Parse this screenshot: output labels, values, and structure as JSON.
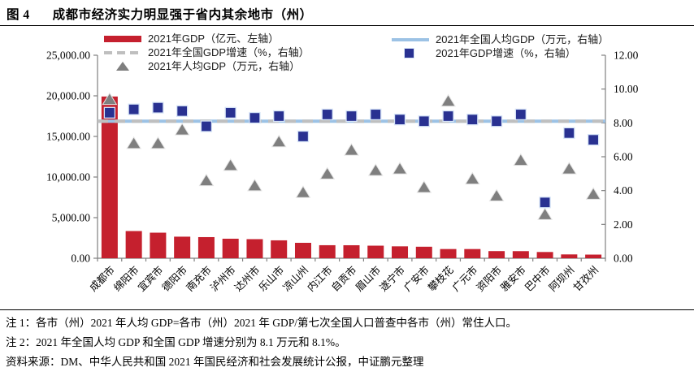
{
  "figure": {
    "label": "图 4",
    "title": "成都市经济实力明显强于省内其余地市（州）"
  },
  "legend": [
    {
      "label": "2021年GDP（亿元、左轴）",
      "marker": "red-bar"
    },
    {
      "label": "2021年全国GDP增速（%，右轴）",
      "marker": "gray-dashed-line"
    },
    {
      "label": "2021年人均GDP（万元，右轴）",
      "marker": "gray-triangle"
    },
    {
      "label": "2021年全国人均GDP（万元，右轴）",
      "marker": "lightblue-line"
    },
    {
      "label": "2021年GDP增速（%，右轴）",
      "marker": "navy-square"
    }
  ],
  "chart_data": {
    "type": "bar",
    "subtype": "combo: bars (left axis) + scatter squares/triangles (right axis) + two horizontal reference lines",
    "title": "成都市经济实力明显强于省内其余地市（州）",
    "categories": [
      "成都市",
      "绵阳市",
      "宜宾市",
      "德阳市",
      "南充市",
      "泸州市",
      "达州市",
      "乐山市",
      "凉山州",
      "内江市",
      "自贡市",
      "眉山市",
      "遂宁市",
      "广安市",
      "攀枝花",
      "广元市",
      "资阳市",
      "雅安市",
      "巴中市",
      "阿坝州",
      "甘孜州"
    ],
    "series": [
      {
        "name": "2021年GDP（亿元、左轴）",
        "type": "bar",
        "axis": "left",
        "color": "#C5202E",
        "values": [
          19917,
          3350,
          3148,
          2657,
          2602,
          2406,
          2352,
          2205,
          1901,
          1606,
          1601,
          1548,
          1466,
          1419,
          1134,
          1133,
          879,
          874,
          768,
          472,
          448
        ]
      },
      {
        "name": "2021年GDP增速（%，右轴）",
        "type": "scatter-square",
        "axis": "right",
        "color": "#293191",
        "values": [
          8.6,
          8.8,
          8.9,
          8.7,
          7.8,
          8.6,
          8.3,
          8.4,
          7.2,
          8.5,
          8.4,
          8.5,
          8.2,
          8.1,
          8.4,
          8.2,
          8.1,
          8.5,
          3.3,
          7.4,
          7.0
        ]
      },
      {
        "name": "2021年人均GDP（万元，右轴）",
        "type": "scatter-triangle",
        "axis": "right",
        "color": "#7F7F7F",
        "values": [
          9.4,
          6.8,
          6.8,
          7.6,
          4.6,
          5.5,
          4.3,
          6.9,
          3.9,
          5.0,
          6.4,
          5.2,
          5.3,
          4.2,
          9.3,
          4.7,
          3.7,
          5.8,
          2.6,
          5.3,
          3.8
        ]
      }
    ],
    "reference_lines": [
      {
        "name": "2021年全国人均GDP（万元，右轴）",
        "axis": "right",
        "value": 8.1,
        "style": "solid",
        "color": "#9CC2E5"
      },
      {
        "name": "2021年全国GDP增速（%，右轴）",
        "axis": "right",
        "value": 8.1,
        "style": "dashed",
        "color": "#BFBFBF"
      }
    ],
    "left_axis": {
      "min": 0,
      "max": 25000,
      "step": 5000,
      "tick_labels": [
        "0.00",
        "5,000.00",
        "10,000.00",
        "15,000.00",
        "20,000.00",
        "25,000.00"
      ]
    },
    "right_axis": {
      "min": 0,
      "max": 12,
      "step": 2,
      "tick_labels": [
        "0.00",
        "2.00",
        "4.00",
        "6.00",
        "8.00",
        "10.00",
        "12.00"
      ]
    },
    "xlabel": "",
    "ylabel": "",
    "grid": false,
    "legend_position": "top"
  },
  "notes": {
    "note1": "注 1：各市（州）2021 年人均 GDP=各市（州）2021 年 GDP/第七次全国人口普查中各市（州）常住人口。",
    "note2": "注 2：2021 年全国人均 GDP 和全国 GDP 增速分别为 8.1 万元和 8.1%。",
    "source": "资料来源：DM、中华人民共和国 2021 年国民经济和社会发展统计公报，中证鹏元整理"
  },
  "colors": {
    "bar_red": "#C5202E",
    "square_navy": "#293191",
    "triangle_gray": "#7F7F7F",
    "national_percapita_blue": "#9CC2E5",
    "national_growth_gray": "#BFBFBF",
    "axis_line": "#808080",
    "text": "#000000"
  }
}
